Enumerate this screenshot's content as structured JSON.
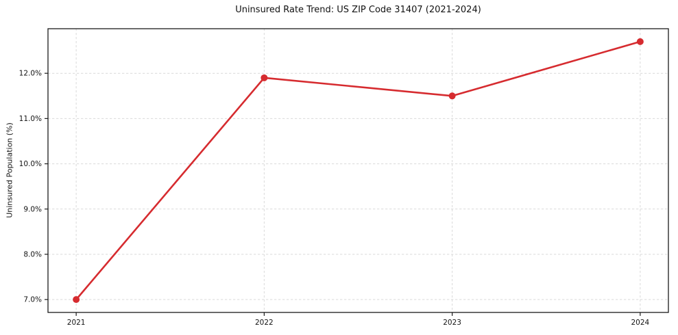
{
  "chart_data": {
    "type": "line",
    "title": "Uninsured Rate Trend: US ZIP Code 31407 (2021-2024)",
    "xlabel": "",
    "ylabel": "Uninsured Population (%)",
    "x": [
      2021,
      2022,
      2023,
      2024
    ],
    "x_tick_labels": [
      "2021",
      "2022",
      "2023",
      "2024"
    ],
    "series": [
      {
        "name": "uninsured-rate",
        "values": [
          7.0,
          11.9,
          11.5,
          12.7
        ],
        "color": "#d62b2f",
        "marker": "circle",
        "line_width": 2.6,
        "marker_radius": 5
      }
    ],
    "y_ticks": [
      7.0,
      8.0,
      9.0,
      10.0,
      11.0,
      12.0
    ],
    "y_tick_labels": [
      "7.0%",
      "8.0%",
      "9.0%",
      "10.0%",
      "11.0%",
      "12.0%"
    ],
    "xlim": [
      2020.85,
      2024.15
    ],
    "ylim": [
      6.715,
      12.985
    ],
    "grid": true,
    "grid_style": "dashed",
    "grid_color": "#d9d9d9",
    "axis_color": "#1a1a1a",
    "tick_color": "#1a1a1a",
    "background_color": "#ffffff",
    "legend_position": "none"
  }
}
